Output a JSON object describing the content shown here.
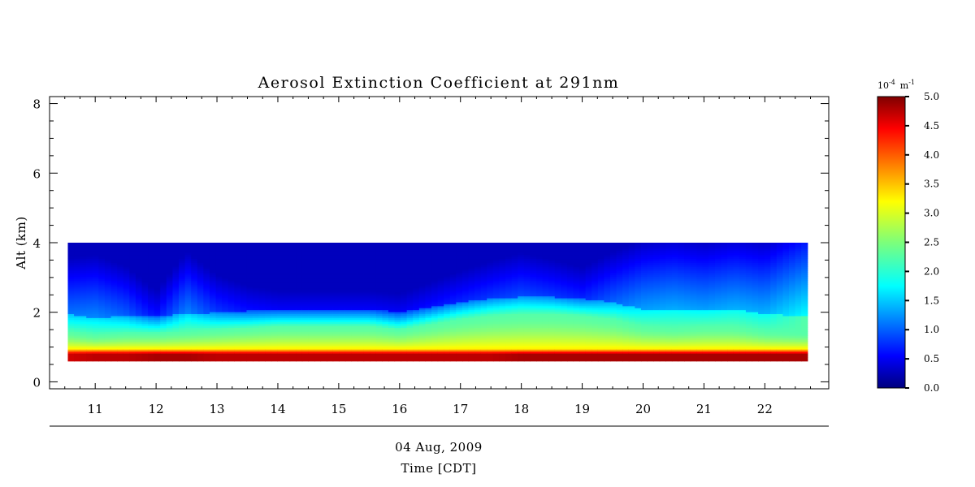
{
  "chart_data": {
    "type": "heatmap",
    "title": "Aerosol Extinction Coefficient at 291nm",
    "xlabel": "Time [CDT]",
    "date_label": "04 Aug, 2009",
    "ylabel": "Alt (km)",
    "xlim": [
      10.25,
      23.05
    ],
    "ylim": [
      -0.2,
      8.2
    ],
    "x_ticks": [
      11,
      12,
      13,
      14,
      15,
      16,
      17,
      18,
      19,
      20,
      21,
      22
    ],
    "x_tick_labels": [
      "11",
      "12",
      "13",
      "14",
      "15",
      "16",
      "17",
      "18",
      "19",
      "20",
      "21",
      "22"
    ],
    "y_ticks": [
      0,
      2,
      4,
      6,
      8
    ],
    "y_tick_labels": [
      "0",
      "2",
      "4",
      "6",
      "8"
    ],
    "data_extent": {
      "x": [
        10.55,
        22.7
      ],
      "y": [
        0.6,
        4.0
      ]
    },
    "colorbar": {
      "unit_base": "10",
      "unit_exp": "-4",
      "unit_m": "m",
      "unit_m_exp": "-1",
      "range": [
        0.0,
        5.0
      ],
      "ticks": [
        "0.0",
        "0.5",
        "1.0",
        "1.5",
        "2.0",
        "2.5",
        "3.0",
        "3.5",
        "4.0",
        "4.5",
        "5.0"
      ],
      "colormap": "jet"
    },
    "profile_altitudes_km": [
      0.6,
      0.75,
      0.85,
      0.95,
      1.1,
      1.3,
      1.5,
      1.7,
      2.0,
      2.3,
      2.6,
      3.0,
      3.5,
      4.0
    ],
    "profile_times": [
      10.55,
      11.0,
      11.5,
      12.0,
      12.5,
      13.0,
      13.5,
      14.0,
      14.5,
      15.0,
      15.5,
      16.0,
      16.5,
      17.0,
      17.5,
      18.0,
      18.5,
      19.0,
      19.5,
      20.0,
      20.5,
      21.0,
      21.5,
      22.0,
      22.7
    ],
    "boundary_layer_top_km": [
      1.45,
      1.35,
      1.4,
      1.4,
      1.45,
      1.5,
      1.55,
      1.6,
      1.6,
      1.6,
      1.6,
      1.5,
      1.65,
      1.8,
      1.9,
      1.95,
      1.95,
      1.9,
      1.8,
      1.6,
      1.55,
      1.6,
      1.6,
      1.45,
      1.4
    ],
    "upper_layer_level": [
      1.2,
      1.3,
      1.1,
      0.7,
      1.3,
      0.9,
      0.7,
      0.6,
      0.6,
      0.6,
      0.6,
      0.6,
      0.7,
      0.8,
      0.9,
      1.0,
      0.9,
      0.8,
      1.1,
      1.4,
      1.5,
      1.4,
      1.5,
      1.5,
      1.9
    ],
    "surface_layer_level": [
      4.6,
      4.7,
      4.7,
      4.8,
      4.8,
      4.7,
      4.7,
      4.7,
      4.7,
      4.7,
      4.7,
      4.7,
      4.7,
      4.7,
      4.7,
      4.8,
      4.8,
      4.8,
      4.8,
      4.8,
      4.8,
      4.8,
      4.8,
      4.8,
      4.8
    ]
  }
}
